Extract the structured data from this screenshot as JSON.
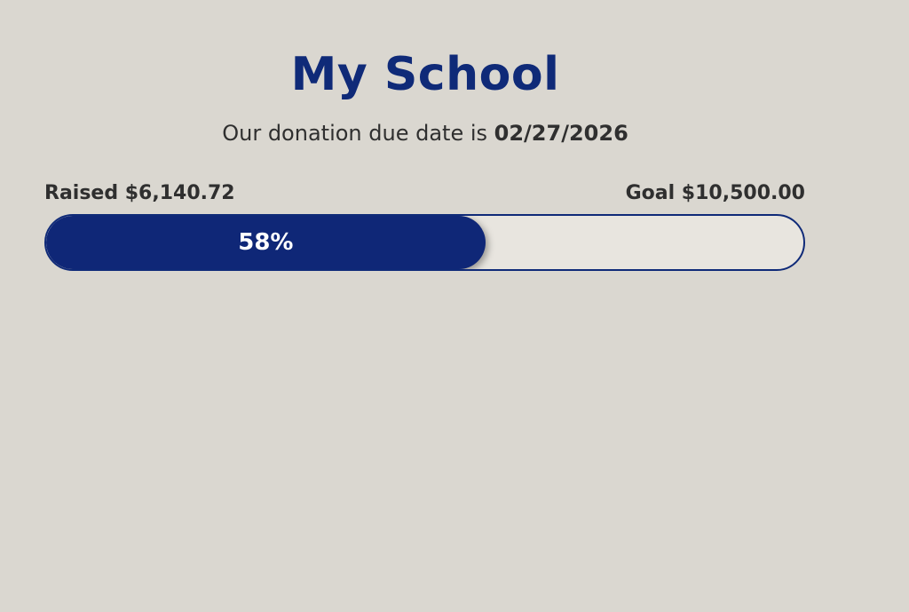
{
  "header": {
    "title": "My School",
    "due_prefix": "Our donation due date is ",
    "due_date": "02/27/2026"
  },
  "progress": {
    "raised_label": "Raised $6,140.72",
    "goal_label": "Goal $10,500.00",
    "percent": 58,
    "percent_label": "58%",
    "fill_color": "#0f2777",
    "track_color": "#e8e5df"
  }
}
